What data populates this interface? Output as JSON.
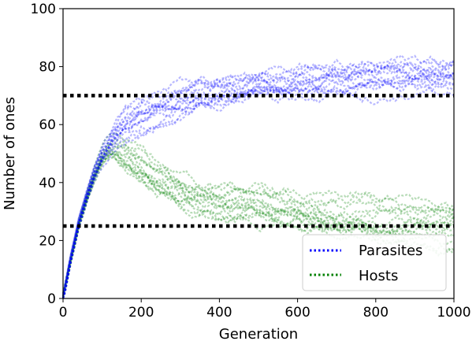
{
  "chart_data": {
    "type": "line",
    "title": "",
    "xlabel": "Generation",
    "ylabel": "Number of ones",
    "xlim": [
      0,
      1000
    ],
    "ylim": [
      0,
      100
    ],
    "x_ticks": [
      0,
      200,
      400,
      600,
      800,
      1000
    ],
    "y_ticks": [
      0,
      20,
      40,
      60,
      80,
      100
    ],
    "grid": false,
    "legend_position": "lower-right",
    "series": [
      {
        "name": "Parasites",
        "color": "#0000ff",
        "style": "dotted",
        "x": [
          0,
          20,
          40,
          60,
          80,
          100,
          120,
          140,
          160,
          180,
          200,
          250,
          300,
          350,
          400,
          450,
          500,
          550,
          600,
          650,
          700,
          750,
          800,
          850,
          900,
          950,
          1000
        ],
        "y": [
          0,
          14,
          26,
          35,
          43,
          49,
          53,
          57,
          60,
          62,
          64,
          67,
          69,
          71,
          72,
          73,
          74,
          74,
          75,
          75,
          76,
          76,
          76,
          77,
          77,
          77,
          77
        ]
      },
      {
        "name": "Hosts",
        "color": "#008000",
        "style": "dotted",
        "x": [
          0,
          20,
          40,
          60,
          80,
          100,
          120,
          140,
          160,
          180,
          200,
          250,
          300,
          350,
          400,
          450,
          500,
          550,
          600,
          650,
          700,
          750,
          800,
          850,
          900,
          950,
          1000
        ],
        "y": [
          0,
          13,
          25,
          34,
          42,
          48,
          51,
          50,
          48,
          46,
          44,
          40,
          37,
          35,
          33,
          32,
          31,
          30,
          29,
          28,
          27,
          27,
          26,
          26,
          26,
          25,
          25
        ]
      }
    ],
    "reference_lines": [
      {
        "y": 70,
        "color": "#000000",
        "style": "dotted"
      },
      {
        "y": 25,
        "color": "#000000",
        "style": "dotted"
      }
    ]
  }
}
